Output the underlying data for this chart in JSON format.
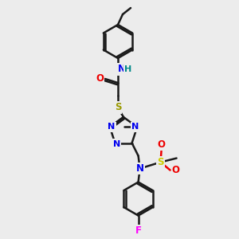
{
  "bg_color": "#ececec",
  "bond_color": "#1a1a1a",
  "atom_colors": {
    "N": "#0000ee",
    "O": "#ee0000",
    "S1": "#999900",
    "S2": "#cccc00",
    "F": "#ff00ff",
    "H": "#008888",
    "C": "#1a1a1a"
  },
  "figsize": [
    3.0,
    3.0
  ],
  "dpi": 100
}
